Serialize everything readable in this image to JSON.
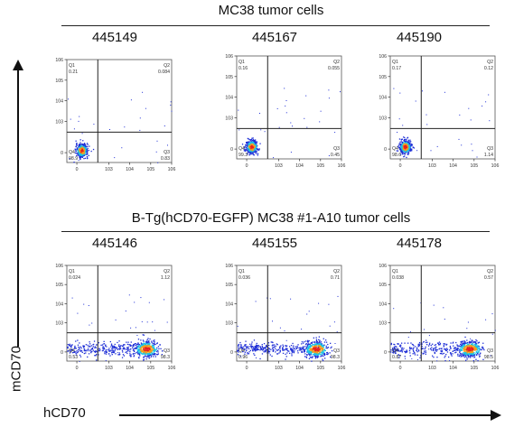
{
  "figure": {
    "groups": [
      {
        "title": "MC38 tumor cells",
        "samples": [
          "445149",
          "445167",
          "445190"
        ]
      },
      {
        "title": "B-Tg(hCD70-EGFP) MC38 #1-A10 tumor cells",
        "samples": [
          "445146",
          "445155",
          "445178"
        ]
      }
    ],
    "y_axis_label": "mCD70",
    "x_axis_label": "hCD70",
    "colors": {
      "dot_low": "#1f2fd6",
      "dot_mid": "#19c3e6",
      "dot_high": "#e81e1e",
      "axes": "#222222"
    }
  },
  "chart_data": [
    {
      "type": "scatter",
      "group": "MC38 tumor cells",
      "sample": "445149",
      "xlabel": "hCD70",
      "ylabel": "mCD70",
      "x_scale": "log",
      "y_scale": "log",
      "xlim": [
        10,
        1000000
      ],
      "ylim": [
        10,
        1000000
      ],
      "gate": {
        "x": 300,
        "y": 300
      },
      "quadrants": {
        "Q1": "0.21",
        "Q2": "0.084",
        "Q3": "0.83",
        "Q4": "98.9"
      },
      "population": {
        "center_x": 50,
        "center_y": 40,
        "spread": "compact"
      },
      "tick_labels": [
        "0",
        "10^3",
        "10^4",
        "10^5",
        "10^6"
      ]
    },
    {
      "type": "scatter",
      "group": "MC38 tumor cells",
      "sample": "445167",
      "xlabel": "hCD70",
      "ylabel": "mCD70",
      "x_scale": "log",
      "y_scale": "log",
      "xlim": [
        10,
        1000000
      ],
      "ylim": [
        10,
        1000000
      ],
      "gate": {
        "x": 300,
        "y": 300
      },
      "quadrants": {
        "Q1": "0.16",
        "Q2": "0.055",
        "Q3": "0.45",
        "Q4": "99.3"
      },
      "population": {
        "center_x": 50,
        "center_y": 40,
        "spread": "compact"
      },
      "tick_labels": [
        "0",
        "10^3",
        "10^4",
        "10^5",
        "10^6"
      ]
    },
    {
      "type": "scatter",
      "group": "MC38 tumor cells",
      "sample": "445190",
      "xlabel": "hCD70",
      "ylabel": "mCD70",
      "x_scale": "log",
      "y_scale": "log",
      "xlim": [
        10,
        1000000
      ],
      "ylim": [
        10,
        1000000
      ],
      "gate": {
        "x": 300,
        "y": 300
      },
      "quadrants": {
        "Q1": "0.17",
        "Q2": "0.12",
        "Q3": "1.14",
        "Q4": "98.6"
      },
      "population": {
        "center_x": 50,
        "center_y": 40,
        "spread": "compact"
      },
      "tick_labels": [
        "0",
        "10^3",
        "10^4",
        "10^5",
        "10^6"
      ]
    },
    {
      "type": "scatter",
      "group": "B-Tg(hCD70-EGFP) MC38 #1-A10 tumor cells",
      "sample": "445146",
      "xlabel": "hCD70",
      "ylabel": "mCD70",
      "x_scale": "log",
      "y_scale": "log",
      "xlim": [
        10,
        1000000
      ],
      "ylim": [
        10,
        1000000
      ],
      "gate": {
        "x": 300,
        "y": 300
      },
      "quadrants": {
        "Q1": "0.024",
        "Q2": "1.12",
        "Q3": "98.3",
        "Q4": "0.53"
      },
      "population": {
        "center_x": 60000,
        "center_y": 45,
        "spread": "wide"
      },
      "tick_labels": [
        "0",
        "10^3",
        "10^4",
        "10^5",
        "10^6"
      ]
    },
    {
      "type": "scatter",
      "group": "B-Tg(hCD70-EGFP) MC38 #1-A10 tumor cells",
      "sample": "445155",
      "xlabel": "hCD70",
      "ylabel": "mCD70",
      "x_scale": "log",
      "y_scale": "log",
      "xlim": [
        10,
        1000000
      ],
      "ylim": [
        10,
        1000000
      ],
      "gate": {
        "x": 300,
        "y": 300
      },
      "quadrants": {
        "Q1": "0.036",
        "Q2": "0.71",
        "Q3": "98.3",
        "Q4": "0.96"
      },
      "population": {
        "center_x": 60000,
        "center_y": 45,
        "spread": "wide"
      },
      "tick_labels": [
        "0",
        "10^3",
        "10^4",
        "10^5",
        "10^6"
      ]
    },
    {
      "type": "scatter",
      "group": "B-Tg(hCD70-EGFP) MC38 #1-A10 tumor cells",
      "sample": "445178",
      "xlabel": "hCD70",
      "ylabel": "mCD70",
      "x_scale": "log",
      "y_scale": "log",
      "xlim": [
        10,
        1000000
      ],
      "ylim": [
        10,
        1000000
      ],
      "gate": {
        "x": 300,
        "y": 300
      },
      "quadrants": {
        "Q1": "0.038",
        "Q2": "0.57",
        "Q3": "98.5",
        "Q4": "0.87"
      },
      "population": {
        "center_x": 60000,
        "center_y": 45,
        "spread": "wide"
      },
      "tick_labels": [
        "0",
        "10^3",
        "10^4",
        "10^5",
        "10^6"
      ]
    }
  ]
}
